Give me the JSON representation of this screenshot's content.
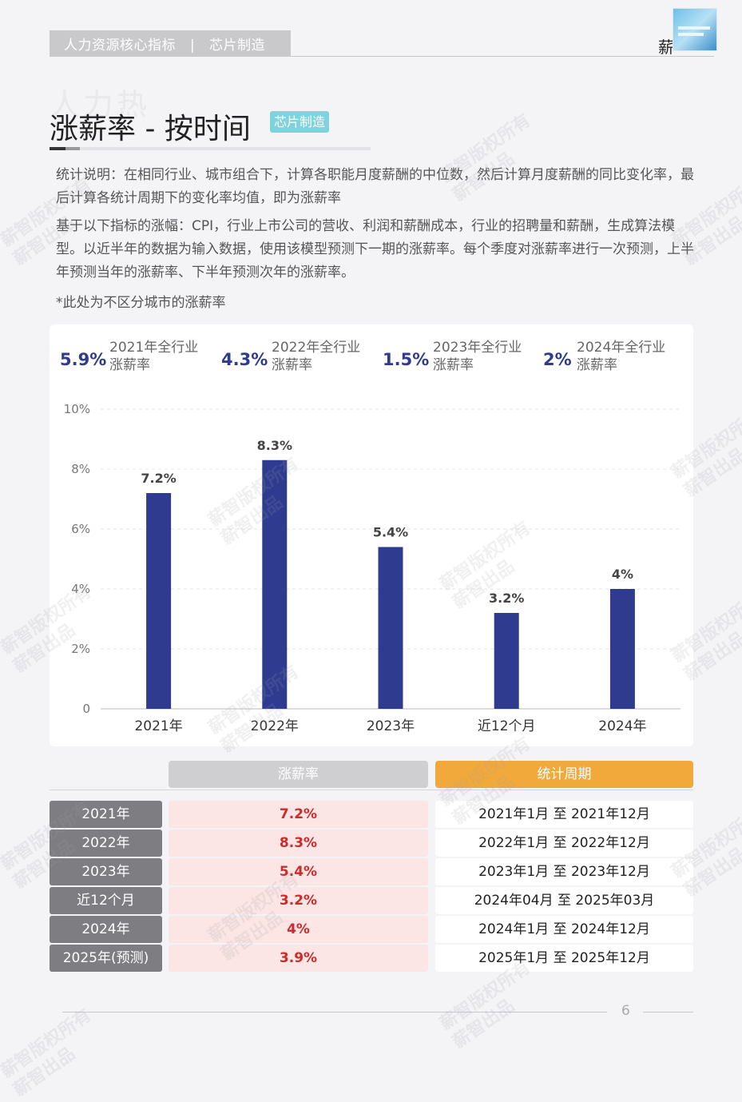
{
  "header": {
    "section": "人力资源核心指标",
    "separator": "|",
    "industry": "芯片制造",
    "brand": "薪"
  },
  "ghost_title": "人力热",
  "title": "涨薪率 - 按时间",
  "tag": "芯片制造",
  "paragraphs": [
    "统计说明：在相同行业、城市组合下，计算各职能月度薪酬的中位数，然后计算月度薪酬的同比变化率，最后计算各统计周期下的变化率均值，即为涨薪率",
    "基于以下指标的涨幅：CPI，行业上市公司的营收、利润和薪酬成本，行业的招聘量和薪酬，生成算法模型。以近半年的数据为输入数据，使用该模型预测下一期的涨薪率。每个季度对涨薪率进行一次预测，上半年预测当年的涨薪率、下半年预测次年的涨薪率。"
  ],
  "note": "*此处为不区分城市的涨薪率",
  "kpis": [
    {
      "value": "5.9%",
      "line1": "2021年全行业",
      "line2": "涨薪率"
    },
    {
      "value": "4.3%",
      "line1": "2022年全行业",
      "line2": "涨薪率"
    },
    {
      "value": "1.5%",
      "line1": "2023年全行业",
      "line2": "涨薪率"
    },
    {
      "value": "2%",
      "line1": "2024年全行业",
      "line2": "涨薪率"
    }
  ],
  "chart_data": {
    "type": "bar",
    "categories": [
      "2021年",
      "2022年",
      "2023年",
      "近12个月",
      "2024年"
    ],
    "values": [
      7.2,
      8.3,
      5.4,
      3.2,
      4
    ],
    "data_labels": [
      "7.2%",
      "8.3%",
      "5.4%",
      "3.2%",
      "4%"
    ],
    "ylim": [
      0,
      10
    ],
    "yticks": [
      0,
      2,
      4,
      6,
      8,
      10
    ],
    "ytick_labels": [
      "0",
      "2%",
      "4%",
      "6%",
      "8%",
      "10%"
    ],
    "title": "",
    "xlabel": "",
    "ylabel": "",
    "grid": true,
    "bar_color": "#2f3b8f"
  },
  "table": {
    "headers": {
      "rate": "涨薪率",
      "period": "统计周期"
    },
    "rows": [
      {
        "label": "2021年",
        "rate": "7.2%",
        "period": "2021年1月 至 2021年12月"
      },
      {
        "label": "2022年",
        "rate": "8.3%",
        "period": "2022年1月 至 2022年12月"
      },
      {
        "label": "2023年",
        "rate": "5.4%",
        "period": "2023年1月 至 2023年12月"
      },
      {
        "label": "近12个月",
        "rate": "3.2%",
        "period": "2024年04月 至 2025年03月"
      },
      {
        "label": "2024年",
        "rate": "4%",
        "period": "2024年1月 至 2024年12月"
      },
      {
        "label": "2025年(预测)",
        "rate": "3.9%",
        "period": "2025年1月 至 2025年12月"
      }
    ]
  },
  "watermark": {
    "line1": "薪智版权所有",
    "line2": "薪智出品"
  },
  "page_number": "6"
}
